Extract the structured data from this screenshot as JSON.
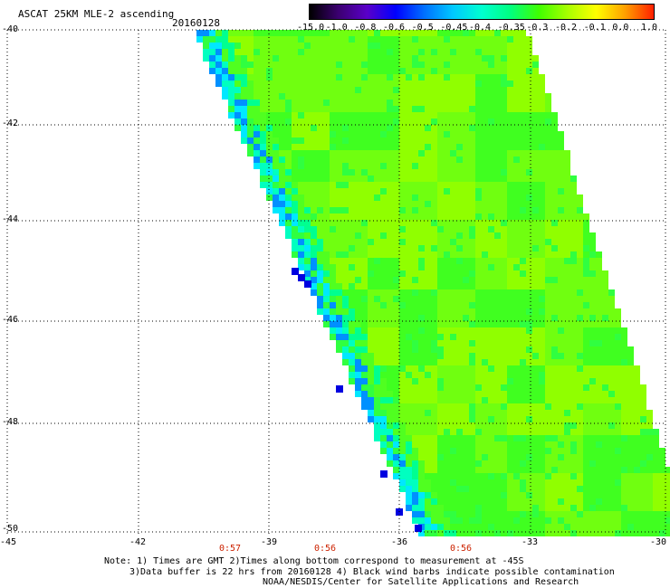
{
  "header": {
    "title": "ASCAT 25KM MLE-2 ascending",
    "date": "20160128"
  },
  "colorbar": {
    "labels": [
      "-15.0",
      "-1.0",
      "-0.8",
      "-0.6",
      "-0.5",
      "-0.45",
      "-0.4",
      "-0.35",
      "-0.3",
      "-0.2",
      "-0.1",
      "0.0",
      "1.0"
    ],
    "colors": [
      "#000000",
      "#3b0070",
      "#5a00c8",
      "#0000ff",
      "#0070ff",
      "#00c8ff",
      "#00ffd0",
      "#00ff80",
      "#40ff00",
      "#a8ff00",
      "#ffff00",
      "#ffa000",
      "#ff2000"
    ]
  },
  "axes": {
    "lat_labels": [
      "-40",
      "-42",
      "-44",
      "-46",
      "-48",
      "-50"
    ],
    "lon_labels": [
      "-45",
      "-42",
      "-39",
      "-36",
      "-33",
      "-30"
    ]
  },
  "times": [
    "0:57",
    "0:56",
    "0:56"
  ],
  "notes": {
    "line1": "Note: 1) Times are GMT 2)Times along bottom correspond to measurement at -45S",
    "line2": "3)Data buffer is 22 hrs from 20160128 4) Black wind barbs indicate possible contamination",
    "line3": "NOAA/NESDIS/Center for Satellite Applications and Research"
  }
}
